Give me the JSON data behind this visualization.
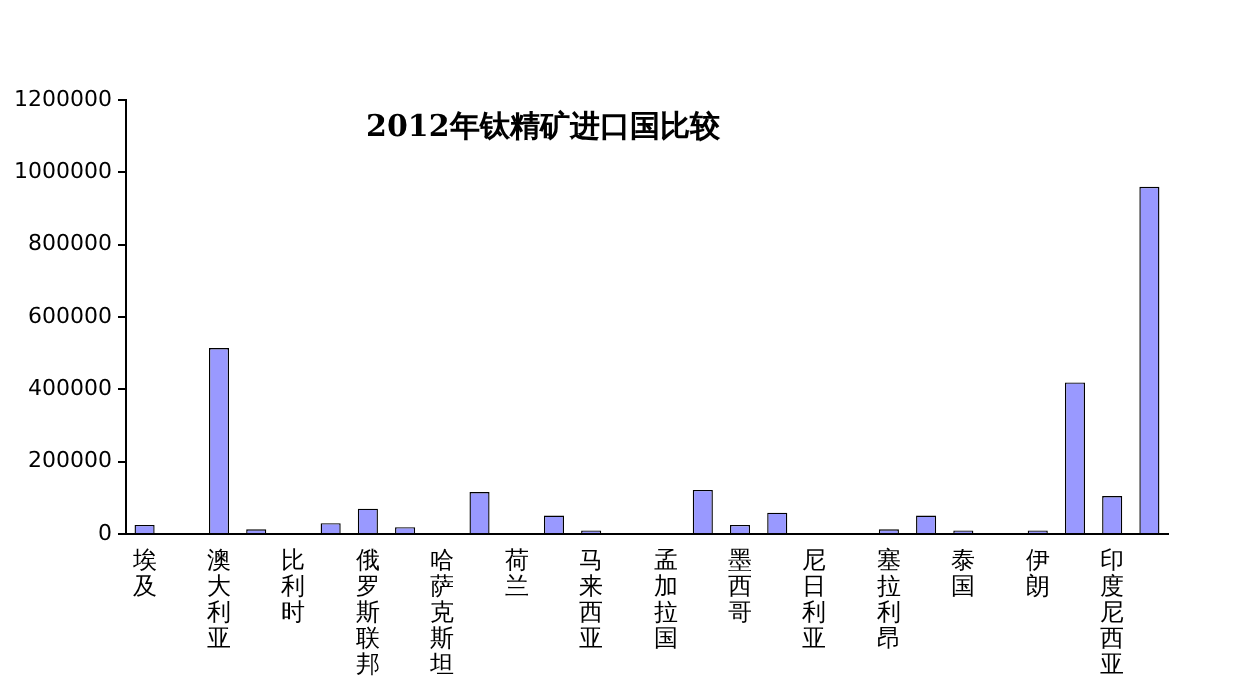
{
  "chart_data": {
    "type": "bar",
    "title": "2012年钛精矿进口国比较",
    "categories": [
      "埃及",
      null,
      "澳大利亚",
      null,
      "比利时",
      null,
      "俄罗斯联邦",
      null,
      "哈萨克斯坦",
      null,
      "荷兰",
      null,
      "马来西亚",
      null,
      "孟加拉国",
      null,
      "墨西哥",
      null,
      "尼日利亚",
      null,
      "塞拉利昂",
      null,
      "泰国",
      null,
      "伊朗",
      null,
      "印度尼西亚",
      null
    ],
    "values": [
      25000,
      0,
      514000,
      13000,
      0,
      30000,
      70000,
      19000,
      0,
      116000,
      0,
      51000,
      10000,
      0,
      0,
      122000,
      25000,
      59000,
      0,
      0,
      13000,
      51000,
      10000,
      0,
      10000,
      419000,
      105000,
      960000
    ],
    "color": "#9999ff",
    "ylim": [
      0,
      1200000
    ],
    "yticks": [
      0,
      200000,
      400000,
      600000,
      800000,
      1000000,
      1200000
    ],
    "grid": false,
    "legend": false
  }
}
